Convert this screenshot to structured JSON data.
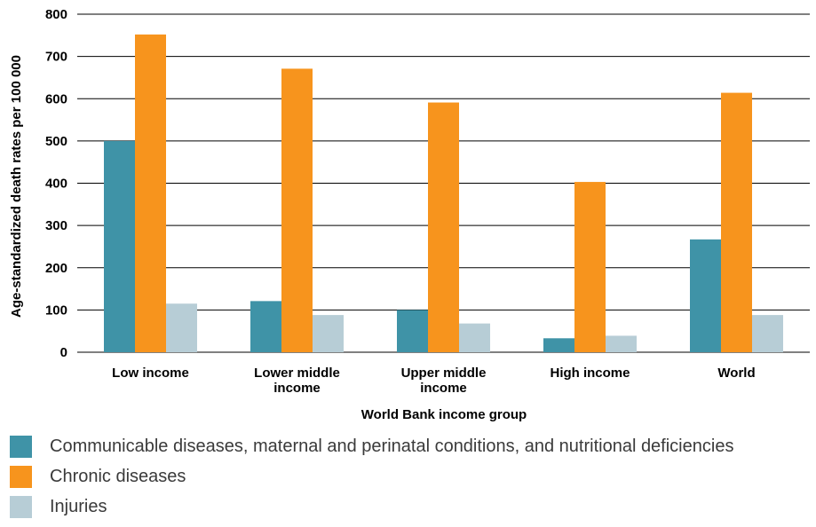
{
  "chart_data": {
    "type": "bar",
    "title": "",
    "xlabel": "World Bank income group",
    "ylabel": "Age-standardized death rates per 100 000",
    "ylim": [
      0,
      800
    ],
    "yticks": [
      0,
      100,
      200,
      300,
      400,
      500,
      600,
      700,
      800
    ],
    "grid": true,
    "legend_position": "bottom",
    "categories": [
      [
        "Low income"
      ],
      [
        "Lower middle",
        "income"
      ],
      [
        "Upper middle",
        "income"
      ],
      [
        "High income"
      ],
      [
        "World"
      ]
    ],
    "series": [
      {
        "name": "Communicable diseases, maternal and perinatal conditions, and nutritional deficiencies",
        "color": "#3f93a7",
        "values": [
          500,
          121,
          100,
          33,
          267
        ]
      },
      {
        "name": "Chronic diseases",
        "color": "#f7941d",
        "values": [
          752,
          671,
          591,
          403,
          614
        ]
      },
      {
        "name": "Injuries",
        "color": "#b7cdd6",
        "values": [
          115,
          88,
          68,
          39,
          88
        ]
      }
    ]
  }
}
